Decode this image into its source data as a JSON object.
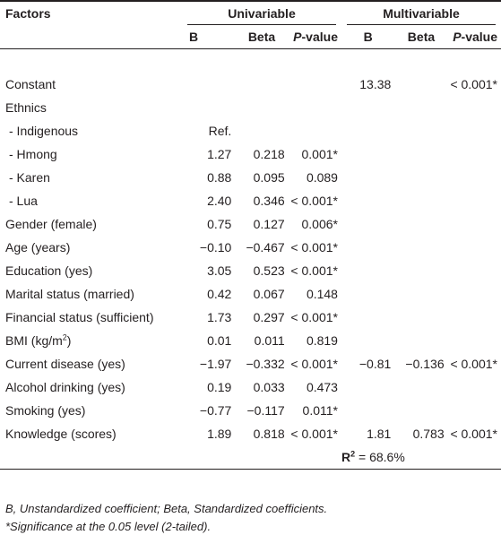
{
  "header": {
    "factors": "Factors",
    "univariable": "Univariable",
    "multivariable": "Multivariable",
    "col_b": "B",
    "col_beta": "Beta",
    "col_p_italic": "P",
    "col_p_rest": "-value"
  },
  "rows": [
    {
      "label": "Constant",
      "ub": "",
      "ubeta": "",
      "up": "",
      "mb": "13.38",
      "mbeta": "",
      "mp": "< 0.001*"
    },
    {
      "label": "Ethnics",
      "ub": "",
      "ubeta": "",
      "up": "",
      "mb": "",
      "mbeta": "",
      "mp": ""
    },
    {
      "label": "- Indigenous",
      "ub": "Ref.",
      "ubeta": "",
      "up": "",
      "mb": "",
      "mbeta": "",
      "mp": ""
    },
    {
      "label": "- Hmong",
      "ub": "1.27",
      "ubeta": "0.218",
      "up": "0.001*",
      "mb": "",
      "mbeta": "",
      "mp": ""
    },
    {
      "label": "- Karen",
      "ub": "0.88",
      "ubeta": "0.095",
      "up": "0.089",
      "mb": "",
      "mbeta": "",
      "mp": ""
    },
    {
      "label": "- Lua",
      "ub": "2.40",
      "ubeta": "0.346",
      "up": "< 0.001*",
      "mb": "",
      "mbeta": "",
      "mp": ""
    },
    {
      "label": "Gender (female)",
      "ub": "0.75",
      "ubeta": "0.127",
      "up": "0.006*",
      "mb": "",
      "mbeta": "",
      "mp": ""
    },
    {
      "label": "Age (years)",
      "ub": "−0.10",
      "ubeta": "−0.467",
      "up": "< 0.001*",
      "mb": "",
      "mbeta": "",
      "mp": ""
    },
    {
      "label": "Education (yes)",
      "ub": "3.05",
      "ubeta": "0.523",
      "up": "< 0.001*",
      "mb": "",
      "mbeta": "",
      "mp": ""
    },
    {
      "label": "Marital status (married)",
      "ub": "0.42",
      "ubeta": "0.067",
      "up": "0.148",
      "mb": "",
      "mbeta": "",
      "mp": ""
    },
    {
      "label": "Financial status (sufficient)",
      "ub": "1.73",
      "ubeta": "0.297",
      "up": "< 0.001*",
      "mb": "",
      "mbeta": "",
      "mp": ""
    },
    {
      "label_main": "BMI (kg/m",
      "label_sup": "2",
      "label_end": ")",
      "ub": "0.01",
      "ubeta": "0.011",
      "up": "0.819",
      "mb": "",
      "mbeta": "",
      "mp": ""
    },
    {
      "label": "Current disease (yes)",
      "ub": "−1.97",
      "ubeta": "−0.332",
      "up": "< 0.001*",
      "mb": "−0.81",
      "mbeta": "−0.136",
      "mp": "< 0.001*"
    },
    {
      "label": "Alcohol drinking (yes)",
      "ub": "0.19",
      "ubeta": "0.033",
      "up": "0.473",
      "mb": "",
      "mbeta": "",
      "mp": ""
    },
    {
      "label": "Smoking (yes)",
      "ub": "−0.77",
      "ubeta": "−0.117",
      "up": "0.011*",
      "mb": "",
      "mbeta": "",
      "mp": ""
    },
    {
      "label": "Knowledge (scores)",
      "ub": "1.89",
      "ubeta": "0.818",
      "up": "< 0.001*",
      "mb": "1.81",
      "mbeta": "0.783",
      "mp": "< 0.001*"
    }
  ],
  "r2": {
    "label": "R",
    "sup": "2",
    "value": " = 68.6%"
  },
  "footnotes": {
    "line1": "B, Unstandardized coefficient; Beta, Standardized coefficients.",
    "line2": "*Significance at the 0.05 level (2-tailed)."
  }
}
